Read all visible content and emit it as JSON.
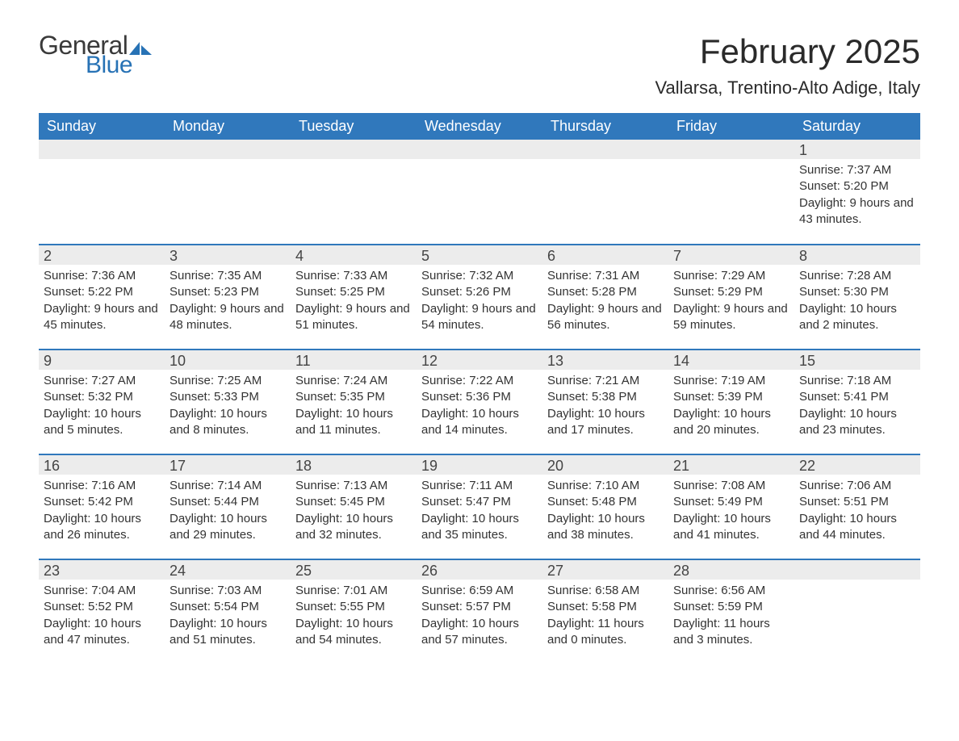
{
  "brand": {
    "word1": "General",
    "word2": "Blue",
    "accent_color": "#2772b5",
    "text_color": "#3a3a3a"
  },
  "title": "February 2025",
  "location": "Vallarsa, Trentino-Alto Adige, Italy",
  "header_bg": "#3078bc",
  "daynum_bg": "#ececec",
  "week_border": "#3078bc",
  "dayHeaders": [
    "Sunday",
    "Monday",
    "Tuesday",
    "Wednesday",
    "Thursday",
    "Friday",
    "Saturday"
  ],
  "weeks": [
    [
      null,
      null,
      null,
      null,
      null,
      null,
      {
        "n": "1",
        "sunrise": "Sunrise: 7:37 AM",
        "sunset": "Sunset: 5:20 PM",
        "daylight": "Daylight: 9 hours and 43 minutes."
      }
    ],
    [
      {
        "n": "2",
        "sunrise": "Sunrise: 7:36 AM",
        "sunset": "Sunset: 5:22 PM",
        "daylight": "Daylight: 9 hours and 45 minutes."
      },
      {
        "n": "3",
        "sunrise": "Sunrise: 7:35 AM",
        "sunset": "Sunset: 5:23 PM",
        "daylight": "Daylight: 9 hours and 48 minutes."
      },
      {
        "n": "4",
        "sunrise": "Sunrise: 7:33 AM",
        "sunset": "Sunset: 5:25 PM",
        "daylight": "Daylight: 9 hours and 51 minutes."
      },
      {
        "n": "5",
        "sunrise": "Sunrise: 7:32 AM",
        "sunset": "Sunset: 5:26 PM",
        "daylight": "Daylight: 9 hours and 54 minutes."
      },
      {
        "n": "6",
        "sunrise": "Sunrise: 7:31 AM",
        "sunset": "Sunset: 5:28 PM",
        "daylight": "Daylight: 9 hours and 56 minutes."
      },
      {
        "n": "7",
        "sunrise": "Sunrise: 7:29 AM",
        "sunset": "Sunset: 5:29 PM",
        "daylight": "Daylight: 9 hours and 59 minutes."
      },
      {
        "n": "8",
        "sunrise": "Sunrise: 7:28 AM",
        "sunset": "Sunset: 5:30 PM",
        "daylight": "Daylight: 10 hours and 2 minutes."
      }
    ],
    [
      {
        "n": "9",
        "sunrise": "Sunrise: 7:27 AM",
        "sunset": "Sunset: 5:32 PM",
        "daylight": "Daylight: 10 hours and 5 minutes."
      },
      {
        "n": "10",
        "sunrise": "Sunrise: 7:25 AM",
        "sunset": "Sunset: 5:33 PM",
        "daylight": "Daylight: 10 hours and 8 minutes."
      },
      {
        "n": "11",
        "sunrise": "Sunrise: 7:24 AM",
        "sunset": "Sunset: 5:35 PM",
        "daylight": "Daylight: 10 hours and 11 minutes."
      },
      {
        "n": "12",
        "sunrise": "Sunrise: 7:22 AM",
        "sunset": "Sunset: 5:36 PM",
        "daylight": "Daylight: 10 hours and 14 minutes."
      },
      {
        "n": "13",
        "sunrise": "Sunrise: 7:21 AM",
        "sunset": "Sunset: 5:38 PM",
        "daylight": "Daylight: 10 hours and 17 minutes."
      },
      {
        "n": "14",
        "sunrise": "Sunrise: 7:19 AM",
        "sunset": "Sunset: 5:39 PM",
        "daylight": "Daylight: 10 hours and 20 minutes."
      },
      {
        "n": "15",
        "sunrise": "Sunrise: 7:18 AM",
        "sunset": "Sunset: 5:41 PM",
        "daylight": "Daylight: 10 hours and 23 minutes."
      }
    ],
    [
      {
        "n": "16",
        "sunrise": "Sunrise: 7:16 AM",
        "sunset": "Sunset: 5:42 PM",
        "daylight": "Daylight: 10 hours and 26 minutes."
      },
      {
        "n": "17",
        "sunrise": "Sunrise: 7:14 AM",
        "sunset": "Sunset: 5:44 PM",
        "daylight": "Daylight: 10 hours and 29 minutes."
      },
      {
        "n": "18",
        "sunrise": "Sunrise: 7:13 AM",
        "sunset": "Sunset: 5:45 PM",
        "daylight": "Daylight: 10 hours and 32 minutes."
      },
      {
        "n": "19",
        "sunrise": "Sunrise: 7:11 AM",
        "sunset": "Sunset: 5:47 PM",
        "daylight": "Daylight: 10 hours and 35 minutes."
      },
      {
        "n": "20",
        "sunrise": "Sunrise: 7:10 AM",
        "sunset": "Sunset: 5:48 PM",
        "daylight": "Daylight: 10 hours and 38 minutes."
      },
      {
        "n": "21",
        "sunrise": "Sunrise: 7:08 AM",
        "sunset": "Sunset: 5:49 PM",
        "daylight": "Daylight: 10 hours and 41 minutes."
      },
      {
        "n": "22",
        "sunrise": "Sunrise: 7:06 AM",
        "sunset": "Sunset: 5:51 PM",
        "daylight": "Daylight: 10 hours and 44 minutes."
      }
    ],
    [
      {
        "n": "23",
        "sunrise": "Sunrise: 7:04 AM",
        "sunset": "Sunset: 5:52 PM",
        "daylight": "Daylight: 10 hours and 47 minutes."
      },
      {
        "n": "24",
        "sunrise": "Sunrise: 7:03 AM",
        "sunset": "Sunset: 5:54 PM",
        "daylight": "Daylight: 10 hours and 51 minutes."
      },
      {
        "n": "25",
        "sunrise": "Sunrise: 7:01 AM",
        "sunset": "Sunset: 5:55 PM",
        "daylight": "Daylight: 10 hours and 54 minutes."
      },
      {
        "n": "26",
        "sunrise": "Sunrise: 6:59 AM",
        "sunset": "Sunset: 5:57 PM",
        "daylight": "Daylight: 10 hours and 57 minutes."
      },
      {
        "n": "27",
        "sunrise": "Sunrise: 6:58 AM",
        "sunset": "Sunset: 5:58 PM",
        "daylight": "Daylight: 11 hours and 0 minutes."
      },
      {
        "n": "28",
        "sunrise": "Sunrise: 6:56 AM",
        "sunset": "Sunset: 5:59 PM",
        "daylight": "Daylight: 11 hours and 3 minutes."
      },
      null
    ]
  ]
}
